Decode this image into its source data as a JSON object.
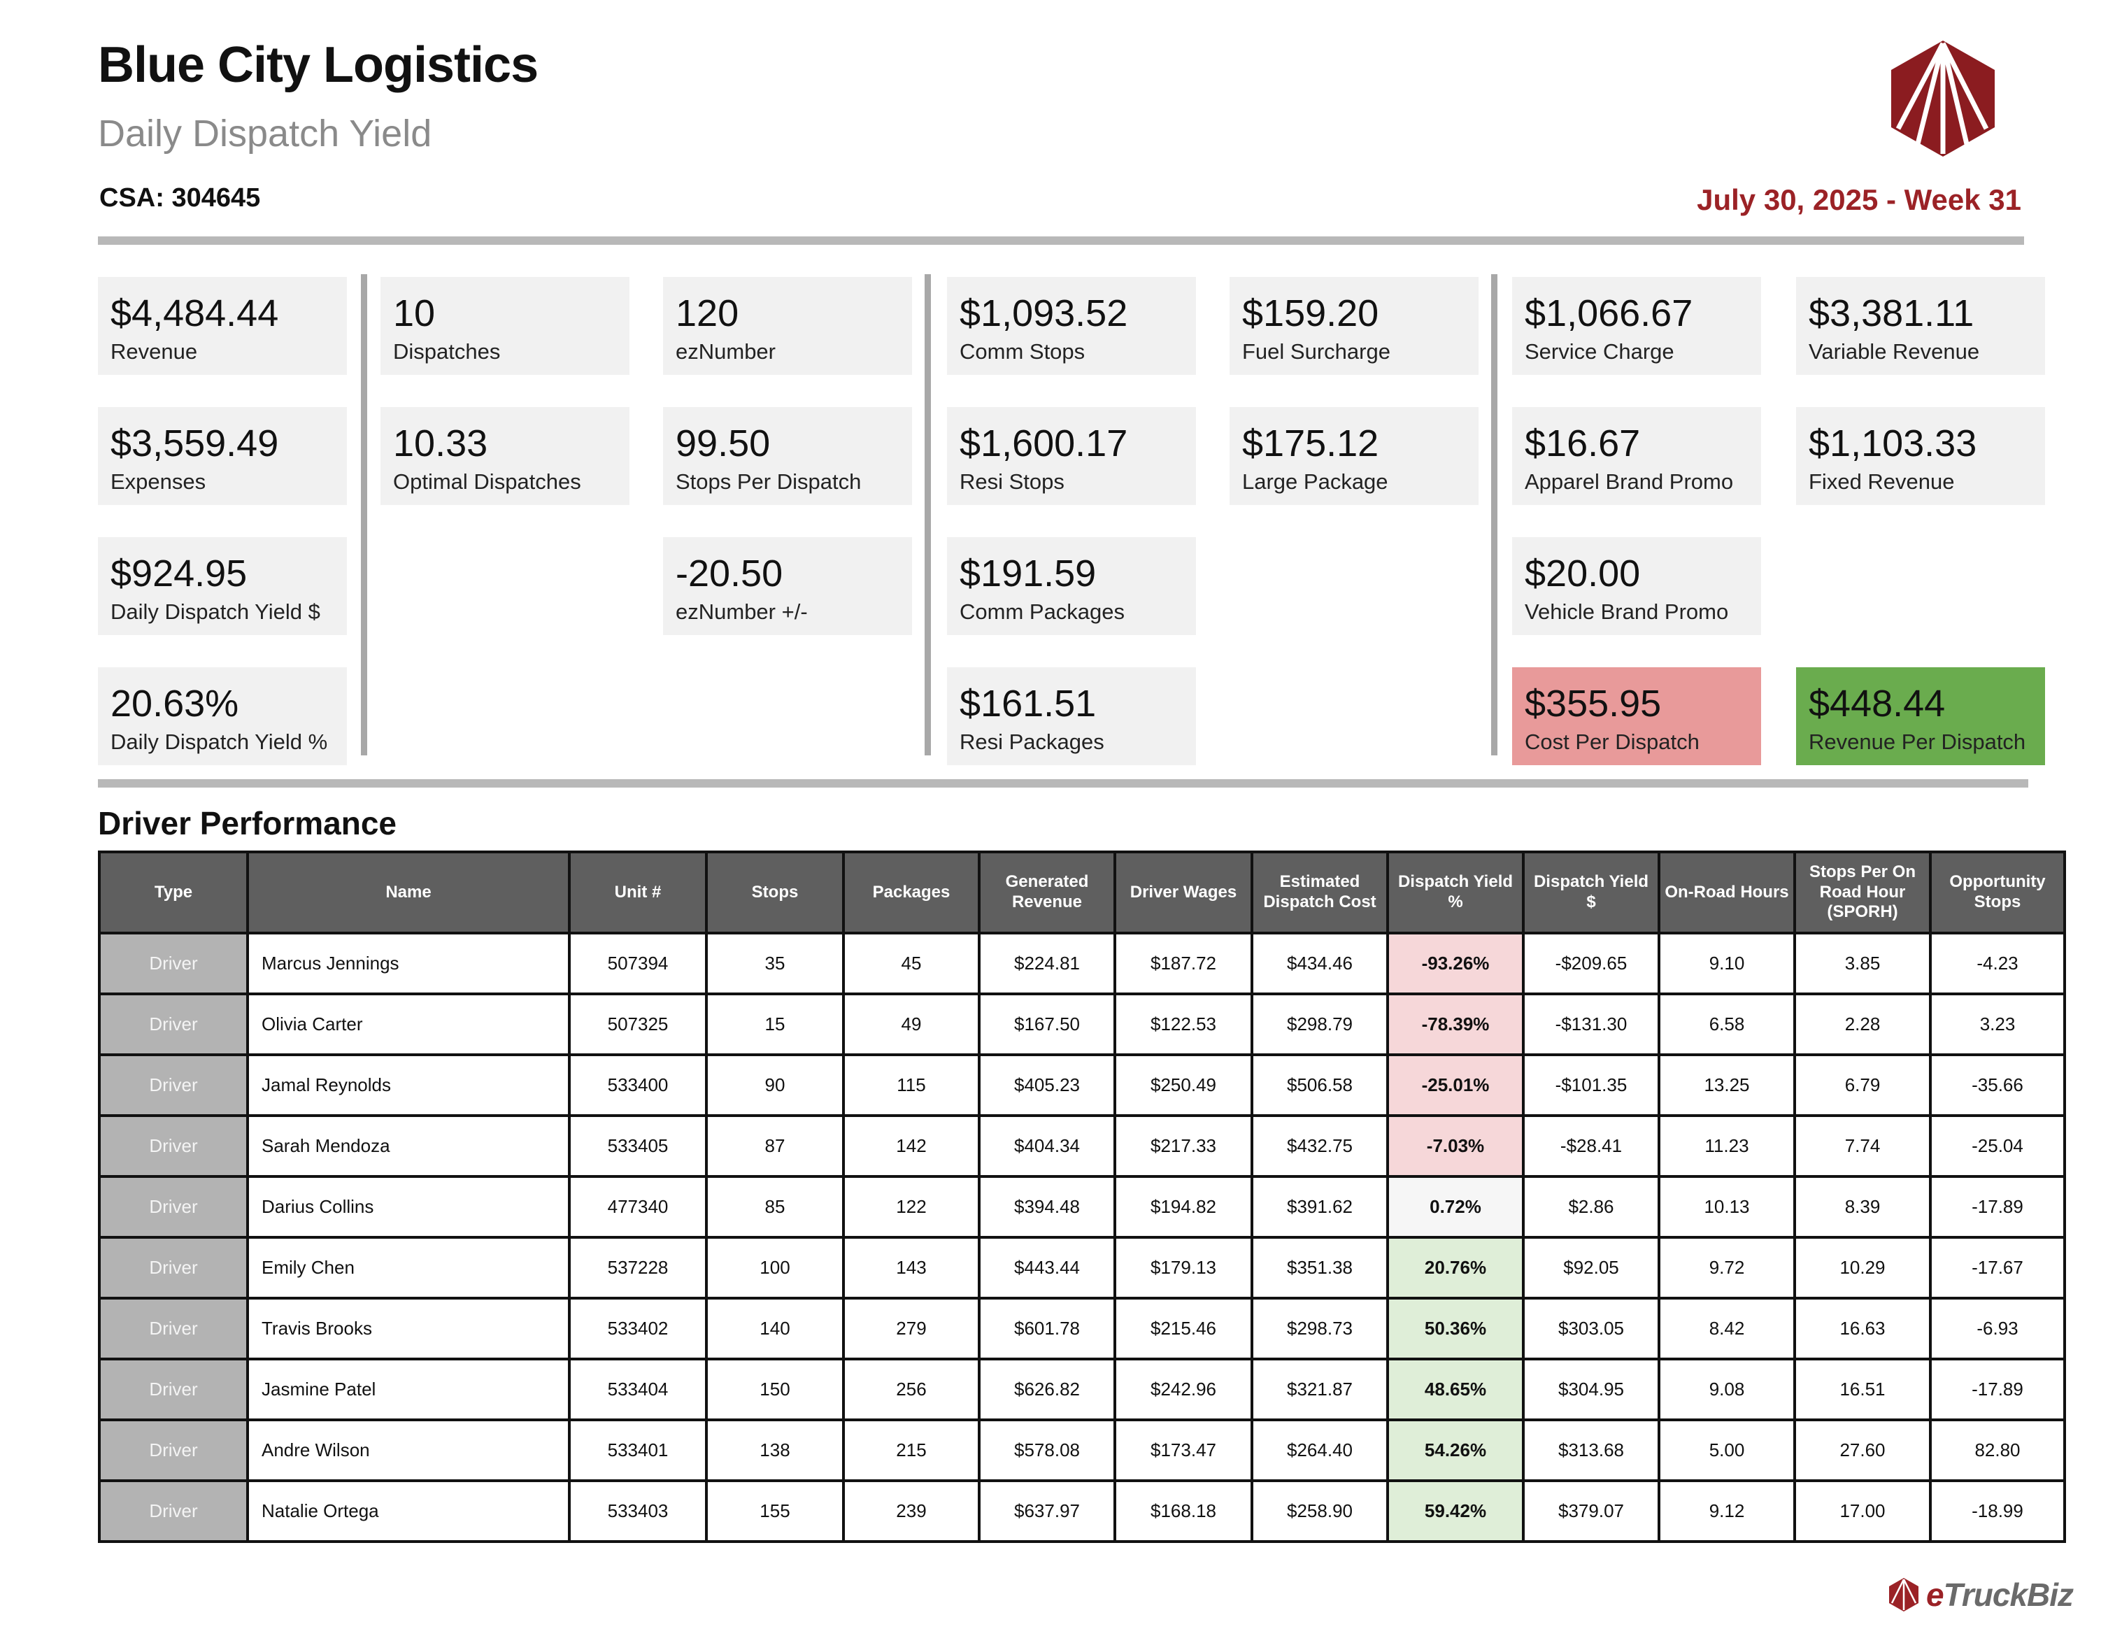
{
  "header": {
    "title": "Blue City Logistics",
    "subtitle": "Daily Dispatch Yield",
    "csa": "CSA: 304645",
    "date": "July 30, 2025 - Week 31"
  },
  "colors": {
    "accent": "#9b2226",
    "negative": "#e89a9a",
    "positive": "#6aac4e"
  },
  "kpis": {
    "revenue": {
      "value": "$4,484.44",
      "label": "Revenue"
    },
    "expenses": {
      "value": "$3,559.49",
      "label": "Expenses"
    },
    "ddy_amount": {
      "value": "$924.95",
      "label": "Daily Dispatch Yield $"
    },
    "ddy_pct": {
      "value": "20.63%",
      "label": "Daily Dispatch Yield %"
    },
    "dispatches": {
      "value": "10",
      "label": "Dispatches"
    },
    "optimal": {
      "value": "10.33",
      "label": "Optimal Dispatches"
    },
    "eznumber": {
      "value": "120",
      "label": "ezNumber"
    },
    "spd": {
      "value": "99.50",
      "label": "Stops Per Dispatch"
    },
    "ezdiff": {
      "value": "-20.50",
      "label": "ezNumber +/-"
    },
    "comm_stops": {
      "value": "$1,093.52",
      "label": "Comm Stops"
    },
    "resi_stops": {
      "value": "$1,600.17",
      "label": "Resi Stops"
    },
    "comm_pkgs": {
      "value": "$191.59",
      "label": "Comm Packages"
    },
    "resi_pkgs": {
      "value": "$161.51",
      "label": "Resi Packages"
    },
    "fuel": {
      "value": "$159.20",
      "label": "Fuel Surcharge"
    },
    "large_pkg": {
      "value": "$175.12",
      "label": "Large Package"
    },
    "service": {
      "value": "$1,066.67",
      "label": "Service Charge"
    },
    "apparel": {
      "value": "$16.67",
      "label": "Apparel Brand Promo"
    },
    "vehicle": {
      "value": "$20.00",
      "label": "Vehicle Brand Promo"
    },
    "cpd": {
      "value": "$355.95",
      "label": "Cost Per Dispatch"
    },
    "variable": {
      "value": "$3,381.11",
      "label": "Variable Revenue"
    },
    "fixed": {
      "value": "$1,103.33",
      "label": "Fixed Revenue"
    },
    "rpd": {
      "value": "$448.44",
      "label": "Revenue Per Dispatch"
    }
  },
  "table": {
    "section_title": "Driver Performance",
    "headers": [
      "Type",
      "Name",
      "Unit #",
      "Stops",
      "Packages",
      "Generated Revenue",
      "Driver Wages",
      "Estimated Dispatch Cost",
      "Dispatch Yield %",
      "Dispatch Yield $",
      "On-Road Hours",
      "Stops Per On Road Hour (SPORH)",
      "Opportunity Stops"
    ],
    "rows": [
      [
        "Driver",
        "Marcus Jennings",
        "507394",
        "35",
        "45",
        "$224.81",
        "$187.72",
        "$434.46",
        "-93.26%",
        "-$209.65",
        "9.10",
        "3.85",
        "-4.23"
      ],
      [
        "Driver",
        "Olivia Carter",
        "507325",
        "15",
        "49",
        "$167.50",
        "$122.53",
        "$298.79",
        "-78.39%",
        "-$131.30",
        "6.58",
        "2.28",
        "3.23"
      ],
      [
        "Driver",
        "Jamal Reynolds",
        "533400",
        "90",
        "115",
        "$405.23",
        "$250.49",
        "$506.58",
        "-25.01%",
        "-$101.35",
        "13.25",
        "6.79",
        "-35.66"
      ],
      [
        "Driver",
        "Sarah Mendoza",
        "533405",
        "87",
        "142",
        "$404.34",
        "$217.33",
        "$432.75",
        "-7.03%",
        "-$28.41",
        "11.23",
        "7.74",
        "-25.04"
      ],
      [
        "Driver",
        "Darius Collins",
        "477340",
        "85",
        "122",
        "$394.48",
        "$194.82",
        "$391.62",
        "0.72%",
        "$2.86",
        "10.13",
        "8.39",
        "-17.89"
      ],
      [
        "Driver",
        "Emily Chen",
        "537228",
        "100",
        "143",
        "$443.44",
        "$179.13",
        "$351.38",
        "20.76%",
        "$92.05",
        "9.72",
        "10.29",
        "-17.67"
      ],
      [
        "Driver",
        "Travis Brooks",
        "533402",
        "140",
        "279",
        "$601.78",
        "$215.46",
        "$298.73",
        "50.36%",
        "$303.05",
        "8.42",
        "16.63",
        "-6.93"
      ],
      [
        "Driver",
        "Jasmine Patel",
        "533404",
        "150",
        "256",
        "$626.82",
        "$242.96",
        "$321.87",
        "48.65%",
        "$304.95",
        "9.08",
        "16.51",
        "-17.89"
      ],
      [
        "Driver",
        "Andre Wilson",
        "533401",
        "138",
        "215",
        "$578.08",
        "$173.47",
        "$264.40",
        "54.26%",
        "$313.68",
        "5.00",
        "27.60",
        "82.80"
      ],
      [
        "Driver",
        "Natalie Ortega",
        "533403",
        "155",
        "239",
        "$637.97",
        "$168.18",
        "$258.90",
        "59.42%",
        "$379.07",
        "9.12",
        "17.00",
        "-18.99"
      ]
    ],
    "yield_status": [
      "neg",
      "neg",
      "neg",
      "neg",
      "neu",
      "pos",
      "pos",
      "pos",
      "pos",
      "pos"
    ]
  },
  "footer": {
    "brand_name": "eTruckBiz"
  }
}
